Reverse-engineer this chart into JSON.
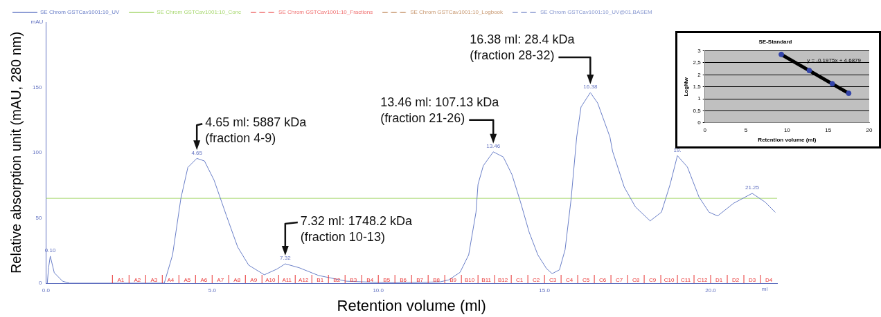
{
  "chart_data": [
    {
      "type": "line",
      "xlabel": "Retention volume (ml)",
      "ylabel": "Relative absorption unit (mAU, 280 nm)",
      "legend": "top",
      "grid": false,
      "xlim": [
        0,
        22
      ],
      "xticks": [
        {
          "value": 0,
          "label": "0.0"
        },
        {
          "value": 5,
          "label": "5.0"
        },
        {
          "value": 10,
          "label": "10.0"
        },
        {
          "value": 15,
          "label": "15.0"
        },
        {
          "value": 20,
          "label": "20.0"
        }
      ],
      "ylim": [
        0,
        200
      ],
      "yticks": [
        0,
        50,
        100,
        150
      ],
      "series": [
        {
          "name": "SE Chrom GSTCav1001:10_UV",
          "color": "#6a7fc8",
          "line_style": "solid",
          "x": [
            0.04,
            0.08,
            0.13,
            0.25,
            0.5,
            0.71,
            2.0,
            3.56,
            3.81,
            4.06,
            4.27,
            4.54,
            4.77,
            5.06,
            5.44,
            5.77,
            6.1,
            6.57,
            6.95,
            7.2,
            7.62,
            8.2,
            9.04,
            10.3,
            11.5,
            11.86,
            12.12,
            12.46,
            12.72,
            12.94,
            13.0,
            13.16,
            13.46,
            13.76,
            14.02,
            14.28,
            14.54,
            14.8,
            15.06,
            15.23,
            15.45,
            15.62,
            15.8,
            15.97,
            16.1,
            16.38,
            16.6,
            16.97,
            17.05,
            17.4,
            17.74,
            18.18,
            18.52,
            18.78,
            19.0,
            19.3,
            19.65,
            19.95,
            20.21,
            20.69,
            21.25,
            21.64,
            21.94
          ],
          "values": [
            0,
            12,
            20.7,
            8,
            1.5,
            0,
            0,
            0,
            21.7,
            65,
            88.7,
            95.6,
            93.6,
            78.8,
            51,
            27.6,
            13.8,
            6.4,
            10.8,
            14.8,
            11.8,
            5.9,
            1.5,
            0.3,
            0.8,
            1,
            2.5,
            8.3,
            21.7,
            54.4,
            75.6,
            90,
            100.6,
            96.7,
            83.3,
            62.1,
            39,
            21.7,
            11.2,
            7.3,
            10.2,
            25.6,
            64,
            112,
            135,
            146,
            138,
            112,
            101,
            73.6,
            58.3,
            47.7,
            54.4,
            75.6,
            97.7,
            89,
            66,
            54.4,
            51.5,
            61.2,
            68.8,
            62.1,
            54.4
          ]
        },
        {
          "name": "SE Chrom GSTCav1001:10_Conc",
          "color": "#a8d870",
          "line_style": "solid",
          "x": [
            0,
            22
          ],
          "values": [
            65,
            65
          ]
        },
        {
          "name": "SE Chrom GSTCav1001:10_Fractions",
          "color": "#f07070",
          "line_style": "dashed"
        },
        {
          "name": "SE Chrom GSTCav1001:10_Logbook",
          "color": "#c89870",
          "line_style": "dashed"
        },
        {
          "name": "SE Chrom GSTCav1001:10_UV@01,BASEM",
          "color": "#8898d0",
          "line_style": "dashed"
        }
      ],
      "ref_lines": [
        {
          "axis": "x",
          "value": 2.0,
          "label": "A1",
          "color": "#e83030"
        },
        {
          "axis": "x",
          "value": 2.5,
          "label": "A2",
          "color": "#e83030"
        },
        {
          "axis": "x",
          "value": 3.0,
          "label": "A3",
          "color": "#e83030"
        },
        {
          "axis": "x",
          "value": 3.5,
          "label": "A4",
          "color": "#e83030"
        },
        {
          "axis": "x",
          "value": 4.0,
          "label": "A5",
          "color": "#e83030"
        },
        {
          "axis": "x",
          "value": 4.5,
          "label": "A6",
          "color": "#e83030"
        },
        {
          "axis": "x",
          "value": 5.0,
          "label": "A7",
          "color": "#e83030"
        },
        {
          "axis": "x",
          "value": 5.5,
          "label": "A8",
          "color": "#e83030"
        },
        {
          "axis": "x",
          "value": 6.0,
          "label": "A9",
          "color": "#e83030"
        },
        {
          "axis": "x",
          "value": 6.5,
          "label": "A10",
          "color": "#e83030"
        },
        {
          "axis": "x",
          "value": 7.0,
          "label": "A11",
          "color": "#e83030"
        },
        {
          "axis": "x",
          "value": 7.5,
          "label": "A12",
          "color": "#e83030"
        },
        {
          "axis": "x",
          "value": 8.0,
          "label": "B1",
          "color": "#e83030"
        },
        {
          "axis": "x",
          "value": 8.5,
          "label": "B2",
          "color": "#e83030"
        },
        {
          "axis": "x",
          "value": 9.0,
          "label": "B3",
          "color": "#e83030"
        },
        {
          "axis": "x",
          "value": 9.5,
          "label": "B4",
          "color": "#e83030"
        },
        {
          "axis": "x",
          "value": 10.0,
          "label": "B5",
          "color": "#e83030"
        },
        {
          "axis": "x",
          "value": 10.5,
          "label": "B6",
          "color": "#e83030"
        },
        {
          "axis": "x",
          "value": 11.0,
          "label": "B7",
          "color": "#e83030"
        },
        {
          "axis": "x",
          "value": 11.5,
          "label": "B8",
          "color": "#e83030"
        },
        {
          "axis": "x",
          "value": 12.0,
          "label": "B9",
          "color": "#e83030"
        },
        {
          "axis": "x",
          "value": 12.5,
          "label": "B10",
          "color": "#e83030"
        },
        {
          "axis": "x",
          "value": 13.0,
          "label": "B11",
          "color": "#e83030"
        },
        {
          "axis": "x",
          "value": 13.5,
          "label": "B12",
          "color": "#e83030"
        },
        {
          "axis": "x",
          "value": 14.0,
          "label": "C1",
          "color": "#e83030"
        },
        {
          "axis": "x",
          "value": 14.5,
          "label": "C2",
          "color": "#e83030"
        },
        {
          "axis": "x",
          "value": 15.0,
          "label": "C3",
          "color": "#e83030"
        },
        {
          "axis": "x",
          "value": 15.5,
          "label": "C4",
          "color": "#e83030"
        },
        {
          "axis": "x",
          "value": 16.0,
          "label": "C5",
          "color": "#e83030"
        },
        {
          "axis": "x",
          "value": 16.5,
          "label": "C6",
          "color": "#e83030"
        },
        {
          "axis": "x",
          "value": 17.0,
          "label": "C7",
          "color": "#e83030"
        },
        {
          "axis": "x",
          "value": 17.5,
          "label": "C8",
          "color": "#e83030"
        },
        {
          "axis": "x",
          "value": 18.0,
          "label": "C9",
          "color": "#e83030"
        },
        {
          "axis": "x",
          "value": 18.5,
          "label": "C10",
          "color": "#e83030"
        },
        {
          "axis": "x",
          "value": 19.0,
          "label": "C11",
          "color": "#e83030"
        },
        {
          "axis": "x",
          "value": 19.5,
          "label": "C12",
          "color": "#e83030"
        },
        {
          "axis": "x",
          "value": 20.0,
          "label": "D1",
          "color": "#e83030"
        },
        {
          "axis": "x",
          "value": 20.5,
          "label": "D2",
          "color": "#e83030"
        },
        {
          "axis": "x",
          "value": 21.0,
          "label": "D3",
          "color": "#e83030"
        },
        {
          "axis": "x",
          "value": 21.5,
          "label": "D4",
          "color": "#e83030"
        }
      ],
      "annotations": [
        "mAU",
        "ml",
        {
          "text": "0.10",
          "x": 0.13,
          "y": 20.7
        },
        {
          "text": "4.65",
          "x": 4.54,
          "y": 95.6
        },
        {
          "text": "7.32",
          "x": 7.2,
          "y": 14.8
        },
        {
          "text": "13.46",
          "x": 13.46,
          "y": 100.6
        },
        {
          "text": "16.38",
          "x": 16.38,
          "y": 146
        },
        {
          "text": "19.",
          "x": 19.0,
          "y": 97.7
        },
        {
          "text": "21.25",
          "x": 21.25,
          "y": 68.8
        },
        {
          "text": "4.65 ml: 5887 kDa\n(fraction 4-9)",
          "x": 4.54,
          "y": 95.6
        },
        {
          "text": "7.32 ml: 1748.2 kDa\n(fraction 10-13)",
          "x": 7.2,
          "y": 14.8
        },
        {
          "text": "13.46 ml: 107.13 kDa\n(fraction 21-26)",
          "x": 13.46,
          "y": 100.6
        },
        {
          "text": "16.38 ml: 28.4 kDa\n(fraction 28-32)",
          "x": 16.38,
          "y": 146
        }
      ]
    },
    {
      "type": "scatter",
      "title": "SE-Standard",
      "xlabel": "Retention volume (ml)",
      "ylabel": "LogMw",
      "grid": "y",
      "xlim": [
        0,
        20
      ],
      "xticks": [
        0,
        5,
        10,
        15,
        20
      ],
      "ylim": [
        0,
        3
      ],
      "yticks": [
        0,
        {
          "value": 0.5,
          "label": "0,5"
        },
        1,
        {
          "value": 1.5,
          "label": "1,5"
        },
        2,
        {
          "value": 2.5,
          "label": "2,5"
        },
        3
      ],
      "series": [
        {
          "color": "#3344aa",
          "marker": "circle",
          "x": [
            9.3,
            12.7,
            15.5,
            17.5
          ],
          "values": [
            2.85,
            2.18,
            1.63,
            1.23
          ]
        },
        {
          "type": "line",
          "color": "#000000",
          "marker": "none",
          "line_style": "solid",
          "x": [
            9.3,
            17.5
          ],
          "values": [
            2.85,
            1.23
          ]
        }
      ],
      "annotations": [
        "y = -0,1975x + 4,6879"
      ]
    }
  ]
}
